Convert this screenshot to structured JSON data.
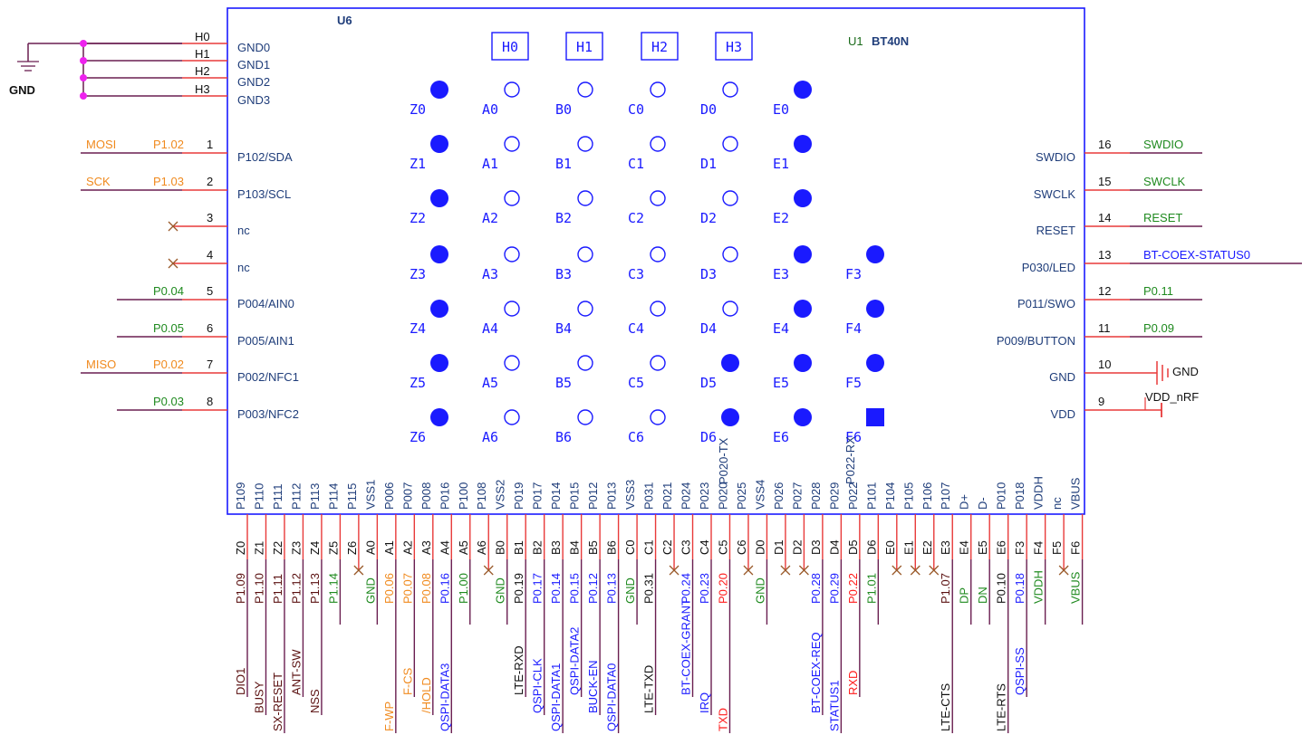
{
  "colors": {
    "box": "#1a1aff",
    "pin_name": "#1f3d7a",
    "wire_red": "#e83a3a",
    "wire_dark": "#6a1e50",
    "junction": "#ee22ee",
    "orange": "#f08a1e",
    "green": "#1f8a1f",
    "blue": "#1a1aff",
    "red": "#ff1a1a",
    "dark": "#5a1010",
    "black": "#111111",
    "noconnect": "#9a5a2a"
  },
  "component": {
    "ref": "U6",
    "ref2": "U1",
    "value": "BT40N"
  },
  "gnd_symbol_label": "GND",
  "gnd_pins": [
    {
      "num": "H0",
      "name": "GND0"
    },
    {
      "num": "H1",
      "name": "GND1"
    },
    {
      "num": "H2",
      "name": "GND2"
    },
    {
      "num": "H3",
      "name": "GND3"
    }
  ],
  "h_boxes": [
    "H0",
    "H1",
    "H2",
    "H3"
  ],
  "pad_grid": [
    {
      "row": 0,
      "cells": [
        [
          "Z0",
          1
        ],
        [
          "A0",
          0
        ],
        [
          "B0",
          0
        ],
        [
          "C0",
          0
        ],
        [
          "D0",
          0
        ],
        [
          "E0",
          1
        ]
      ]
    },
    {
      "row": 1,
      "cells": [
        [
          "Z1",
          1
        ],
        [
          "A1",
          0
        ],
        [
          "B1",
          0
        ],
        [
          "C1",
          0
        ],
        [
          "D1",
          0
        ],
        [
          "E1",
          1
        ]
      ]
    },
    {
      "row": 2,
      "cells": [
        [
          "Z2",
          1
        ],
        [
          "A2",
          0
        ],
        [
          "B2",
          0
        ],
        [
          "C2",
          0
        ],
        [
          "D2",
          0
        ],
        [
          "E2",
          1
        ]
      ]
    },
    {
      "row": 3,
      "cells": [
        [
          "Z3",
          1
        ],
        [
          "A3",
          0
        ],
        [
          "B3",
          0
        ],
        [
          "C3",
          0
        ],
        [
          "D3",
          0
        ],
        [
          "E3",
          1
        ],
        [
          "F3",
          1
        ]
      ]
    },
    {
      "row": 4,
      "cells": [
        [
          "Z4",
          1
        ],
        [
          "A4",
          0
        ],
        [
          "B4",
          0
        ],
        [
          "C4",
          0
        ],
        [
          "D4",
          0
        ],
        [
          "E4",
          1
        ],
        [
          "F4",
          1
        ]
      ]
    },
    {
      "row": 5,
      "cells": [
        [
          "Z5",
          1
        ],
        [
          "A5",
          0
        ],
        [
          "B5",
          0
        ],
        [
          "C5",
          0
        ],
        [
          "D5",
          1
        ],
        [
          "E5",
          1
        ],
        [
          "F5",
          1
        ]
      ]
    },
    {
      "row": 6,
      "cells": [
        [
          "Z6",
          1
        ],
        [
          "A6",
          0
        ],
        [
          "B6",
          0
        ],
        [
          "C6",
          0
        ],
        [
          "D6",
          1
        ],
        [
          "E6",
          1
        ],
        [
          "F6",
          2
        ]
      ]
    }
  ],
  "left_pins": [
    {
      "num": "1",
      "name": "P102/SDA",
      "net": "P1.02",
      "net_color": "orange",
      "func": "MOSI",
      "func_color": "orange",
      "nc": false
    },
    {
      "num": "2",
      "name": "P103/SCL",
      "net": "P1.03",
      "net_color": "orange",
      "func": "SCK",
      "func_color": "orange",
      "nc": false
    },
    {
      "num": "3",
      "name": "nc",
      "net": "",
      "net_color": "",
      "func": "",
      "func_color": "",
      "nc": true
    },
    {
      "num": "4",
      "name": "nc",
      "net": "",
      "net_color": "",
      "func": "",
      "func_color": "",
      "nc": true
    },
    {
      "num": "5",
      "name": "P004/AIN0",
      "net": "P0.04",
      "net_color": "green",
      "func": "",
      "func_color": "",
      "nc": false
    },
    {
      "num": "6",
      "name": "P005/AIN1",
      "net": "P0.05",
      "net_color": "green",
      "func": "",
      "func_color": "",
      "nc": false
    },
    {
      "num": "7",
      "name": "P002/NFC1",
      "net": "P0.02",
      "net_color": "orange",
      "func": "MISO",
      "func_color": "orange",
      "nc": false
    },
    {
      "num": "8",
      "name": "P003/NFC2",
      "net": "P0.03",
      "net_color": "green",
      "func": "",
      "func_color": "",
      "nc": false
    }
  ],
  "right_pins": [
    {
      "num": "16",
      "name": "SWDIO",
      "net": "SWDIO",
      "net_color": "green",
      "kind": "net"
    },
    {
      "num": "15",
      "name": "SWCLK",
      "net": "SWCLK",
      "net_color": "green",
      "kind": "net"
    },
    {
      "num": "14",
      "name": "RESET",
      "net": "RESET",
      "net_color": "green",
      "kind": "net"
    },
    {
      "num": "13",
      "name": "P030/LED",
      "net": "BT-COEX-STATUS0",
      "net_color": "blue",
      "kind": "net"
    },
    {
      "num": "12",
      "name": "P011/SWO",
      "net": "P0.11",
      "net_color": "green",
      "kind": "net"
    },
    {
      "num": "11",
      "name": "P009/BUTTON",
      "net": "P0.09",
      "net_color": "green",
      "kind": "net"
    },
    {
      "num": "10",
      "name": "GND",
      "net": "GND",
      "net_color": "black",
      "kind": "gnd"
    },
    {
      "num": "9",
      "name": "VDD",
      "net": "VDD_nRF",
      "net_color": "black",
      "kind": "pwr"
    }
  ],
  "extra_labels": {
    "d6_tx": "P020-TX",
    "f6_rx": "P022-RX"
  },
  "bottom_pins": [
    {
      "num": "Z0",
      "name": "P109",
      "net": "P1.09",
      "net_color": "dark",
      "func": "DIO1",
      "func_color": "dark",
      "nc": false
    },
    {
      "num": "Z1",
      "name": "P110",
      "net": "P1.10",
      "net_color": "dark",
      "func": "BUSY",
      "func_color": "dark",
      "nc": false
    },
    {
      "num": "Z2",
      "name": "P111",
      "net": "P1.11",
      "net_color": "dark",
      "func": "SX-RESET",
      "func_color": "dark",
      "nc": false
    },
    {
      "num": "Z3",
      "name": "P112",
      "net": "P1.12",
      "net_color": "dark",
      "func": "ANT-SW",
      "func_color": "dark",
      "nc": false
    },
    {
      "num": "Z4",
      "name": "P113",
      "net": "P1.13",
      "net_color": "dark",
      "func": "NSS",
      "func_color": "dark",
      "nc": false
    },
    {
      "num": "Z5",
      "name": "P114",
      "net": "P1.14",
      "net_color": "green",
      "func": "",
      "func_color": "",
      "nc": false
    },
    {
      "num": "Z6",
      "name": "P115",
      "net": "",
      "net_color": "",
      "func": "",
      "func_color": "",
      "nc": true
    },
    {
      "num": "A0",
      "name": "VSS1",
      "net": "GND",
      "net_color": "green",
      "func": "",
      "func_color": "",
      "nc": false
    },
    {
      "num": "A1",
      "name": "P006",
      "net": "P0.06",
      "net_color": "orange",
      "func": "F-WP",
      "func_color": "orange",
      "nc": false
    },
    {
      "num": "A2",
      "name": "P007",
      "net": "P0.07",
      "net_color": "orange",
      "func": "F-CS",
      "func_color": "orange",
      "nc": false
    },
    {
      "num": "A3",
      "name": "P008",
      "net": "P0.08",
      "net_color": "orange",
      "func": "/HOLD",
      "func_color": "orange",
      "nc": false
    },
    {
      "num": "A4",
      "name": "P016",
      "net": "P0.16",
      "net_color": "blue",
      "func": "QSPI-DATA3",
      "func_color": "blue",
      "nc": false
    },
    {
      "num": "A5",
      "name": "P100",
      "net": "P1.00",
      "net_color": "green",
      "func": "",
      "func_color": "",
      "nc": false
    },
    {
      "num": "A6",
      "name": "P108",
      "net": "",
      "net_color": "",
      "func": "",
      "func_color": "",
      "nc": true
    },
    {
      "num": "B0",
      "name": "VSS2",
      "net": "GND",
      "net_color": "green",
      "func": "",
      "func_color": "",
      "nc": false
    },
    {
      "num": "B1",
      "name": "P019",
      "net": "P0.19",
      "net_color": "black",
      "func": "LTE-RXD",
      "func_color": "black",
      "nc": false
    },
    {
      "num": "B2",
      "name": "P017",
      "net": "P0.17",
      "net_color": "blue",
      "func": "QSPI-CLK",
      "func_color": "blue",
      "nc": false
    },
    {
      "num": "B3",
      "name": "P014",
      "net": "P0.14",
      "net_color": "blue",
      "func": "QSPI-DATA1",
      "func_color": "blue",
      "nc": false
    },
    {
      "num": "B4",
      "name": "P015",
      "net": "P0.15",
      "net_color": "blue",
      "func": "QSPI-DATA2",
      "func_color": "blue",
      "nc": false
    },
    {
      "num": "B5",
      "name": "P012",
      "net": "P0.12",
      "net_color": "blue",
      "func": "BUCK-EN",
      "func_color": "blue",
      "nc": false
    },
    {
      "num": "B6",
      "name": "P013",
      "net": "P0.13",
      "net_color": "blue",
      "func": "QSPI-DATA0",
      "func_color": "blue",
      "nc": false
    },
    {
      "num": "C0",
      "name": "VSS3",
      "net": "GND",
      "net_color": "green",
      "func": "",
      "func_color": "",
      "nc": false
    },
    {
      "num": "C1",
      "name": "P031",
      "net": "P0.31",
      "net_color": "black",
      "func": "LTE-TXD",
      "func_color": "black",
      "nc": false
    },
    {
      "num": "C2",
      "name": "P021",
      "net": "",
      "net_color": "",
      "func": "",
      "func_color": "",
      "nc": true
    },
    {
      "num": "C3",
      "name": "P024",
      "net": "P0.24",
      "net_color": "blue",
      "func": "BT-COEX-GRANT",
      "func_color": "blue",
      "nc": false
    },
    {
      "num": "C4",
      "name": "P023",
      "net": "P0.23",
      "net_color": "blue",
      "func": "IRQ",
      "func_color": "blue",
      "nc": false
    },
    {
      "num": "C5",
      "name": "P020-TX",
      "net": "P0.20",
      "net_color": "red",
      "func": "TXD",
      "func_color": "red",
      "nc": false
    },
    {
      "num": "C6",
      "name": "P025",
      "net": "",
      "net_color": "",
      "func": "",
      "func_color": "",
      "nc": true
    },
    {
      "num": "D0",
      "name": "VSS4",
      "net": "GND",
      "net_color": "green",
      "func": "",
      "func_color": "",
      "nc": false
    },
    {
      "num": "D1",
      "name": "P026",
      "net": "",
      "net_color": "",
      "func": "",
      "func_color": "",
      "nc": true
    },
    {
      "num": "D2",
      "name": "P027",
      "net": "",
      "net_color": "",
      "func": "",
      "func_color": "",
      "nc": true
    },
    {
      "num": "D3",
      "name": "P028",
      "net": "P0.28",
      "net_color": "blue",
      "func": "BT-COEX-REQ",
      "func_color": "blue",
      "nc": false
    },
    {
      "num": "D4",
      "name": "P029",
      "net": "P0.29",
      "net_color": "blue",
      "func": "STATUS1",
      "func_color": "blue",
      "nc": false
    },
    {
      "num": "D5",
      "name": "P022-RX",
      "net": "P0.22",
      "net_color": "red",
      "func": "RXD",
      "func_color": "red",
      "nc": false
    },
    {
      "num": "D6",
      "name": "P101",
      "net": "P1.01",
      "net_color": "green",
      "func": "",
      "func_color": "",
      "nc": false
    },
    {
      "num": "E0",
      "name": "P104",
      "net": "",
      "net_color": "",
      "func": "",
      "func_color": "",
      "nc": true
    },
    {
      "num": "E1",
      "name": "P105",
      "net": "",
      "net_color": "",
      "func": "",
      "func_color": "",
      "nc": true
    },
    {
      "num": "E2",
      "name": "P106",
      "net": "",
      "net_color": "",
      "func": "",
      "func_color": "",
      "nc": true
    },
    {
      "num": "E3",
      "name": "P107",
      "net": "P1.07",
      "net_color": "dark",
      "func": "LTE-CTS",
      "func_color": "black",
      "nc": false
    },
    {
      "num": "E4",
      "name": "D+",
      "net": "DP",
      "net_color": "green",
      "func": "",
      "func_color": "",
      "nc": false
    },
    {
      "num": "E5",
      "name": "D-",
      "net": "DN",
      "net_color": "green",
      "func": "",
      "func_color": "",
      "nc": false
    },
    {
      "num": "E6",
      "name": "P010",
      "net": "P0.10",
      "net_color": "black",
      "func": "LTE-RTS",
      "func_color": "black",
      "nc": false
    },
    {
      "num": "F3",
      "name": "P018",
      "net": "P0.18",
      "net_color": "blue",
      "func": "QSPI-SS",
      "func_color": "blue",
      "nc": false
    },
    {
      "num": "F4",
      "name": "VDDH",
      "net": "VDDH",
      "net_color": "green",
      "func": "",
      "func_color": "",
      "nc": false
    },
    {
      "num": "F5",
      "name": "nc",
      "net": "",
      "net_color": "",
      "func": "",
      "func_color": "",
      "nc": true
    },
    {
      "num": "F6",
      "name": "VBUS",
      "net": "VBUS",
      "net_color": "green",
      "func": "",
      "func_color": "",
      "nc": false
    }
  ]
}
